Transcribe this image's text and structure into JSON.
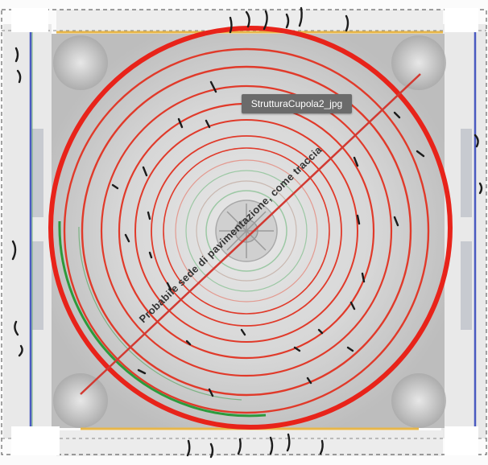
{
  "image": {
    "tooltip_label": "StrutturaCupola2_jpg",
    "annotation_text": "Probabile sede di pavimentazione, come traccia",
    "ring_count": 9,
    "colors": {
      "red_ring": "#e03a2a",
      "thick_outer_ring": "#e8231a",
      "green_arc": "#2d9a3c",
      "pale_green_ring": "#9cc8a4",
      "diagonal_line": "#d23a32",
      "mortar_mark": "#1c1c1c",
      "border_blue": "#4a5ac0",
      "border_yellow": "#e8b74a",
      "tooltip_bg": "#6b6b6b"
    }
  }
}
